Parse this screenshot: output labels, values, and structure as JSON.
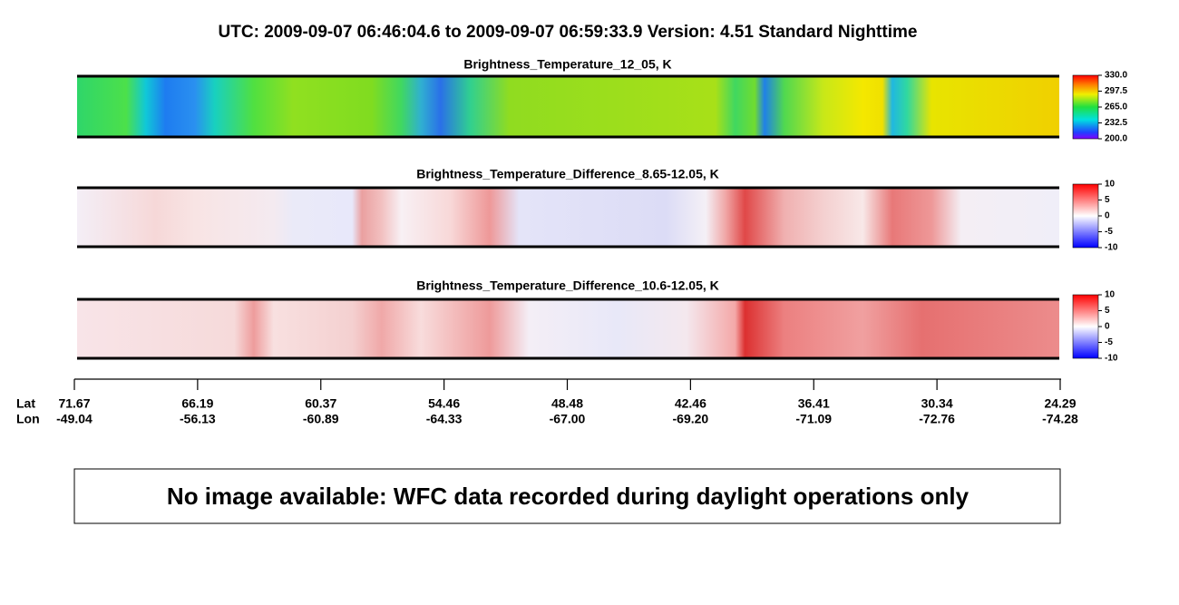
{
  "title": "UTC:  2009-09-07   06:46:04.6  to  2009-09-07   06:59:33.9    Version: 4.51  Standard Nighttime",
  "panels": [
    {
      "title": "Brightness_Temperature_12_05, K",
      "colorbar": [
        "330.0",
        "297.5",
        "265.0",
        "232.5",
        "200.0"
      ]
    },
    {
      "title": "Brightness_Temperature_Difference_8.65-12.05, K",
      "colorbar": [
        "10",
        "5",
        "0",
        "-5",
        "-10"
      ]
    },
    {
      "title": "Brightness_Temperature_Difference_10.6-12.05, K",
      "colorbar": [
        "10",
        "5",
        "0",
        "-5",
        "-10"
      ]
    }
  ],
  "axis": {
    "lat_label": "Lat",
    "lon_label": "Lon",
    "lat": [
      "71.67",
      "66.19",
      "60.37",
      "54.46",
      "48.48",
      "42.46",
      "36.41",
      "30.34",
      "24.29"
    ],
    "lon": [
      "-49.04",
      "-56.13",
      "-60.89",
      "-64.33",
      "-67.00",
      "-69.20",
      "-71.09",
      "-72.76",
      "-74.28"
    ]
  },
  "message": "No image available: WFC data recorded during daylight operations only"
}
